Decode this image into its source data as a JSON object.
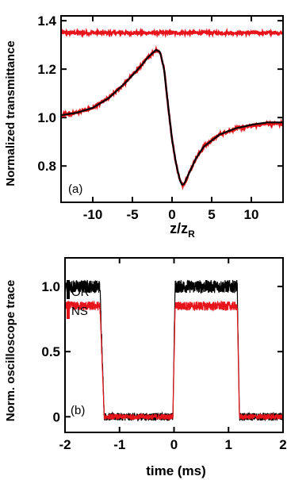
{
  "chart_data": [
    {
      "type": "line",
      "panel_label": "(a)",
      "xlabel": "z/z",
      "xlabel_sub": "R",
      "ylabel": "Normalized transmittance",
      "xlim": [
        -14,
        14
      ],
      "ylim": [
        0.65,
        1.42
      ],
      "xticks": [
        -10,
        -5,
        0,
        5,
        10
      ],
      "xtick_labels": [
        "-10",
        "-5",
        "0",
        "5",
        "10"
      ],
      "yticks": [
        0.8,
        1.0,
        1.2,
        1.4
      ],
      "ytick_labels": [
        "0.8",
        "1.0",
        "1.2",
        "1.4"
      ],
      "grid": false,
      "series": [
        {
          "color": "#e8141c",
          "style": "noisy-flat",
          "x": [
            -14,
            14
          ],
          "y": [
            1.35,
            1.35
          ]
        },
        {
          "color": "#e8141c",
          "style": "noisy-data",
          "x": [
            -14,
            -12,
            -10,
            -8,
            -6,
            -4,
            -3,
            -2,
            -1.5,
            -1,
            -0.5,
            0,
            0.5,
            1,
            1.3,
            1.6,
            2,
            3,
            4,
            6,
            8,
            10,
            12,
            14
          ],
          "y": [
            1.01,
            1.02,
            1.04,
            1.08,
            1.14,
            1.21,
            1.25,
            1.28,
            1.27,
            1.2,
            1.05,
            0.91,
            0.81,
            0.74,
            0.72,
            0.73,
            0.76,
            0.83,
            0.88,
            0.93,
            0.955,
            0.965,
            0.975,
            0.975
          ]
        },
        {
          "color": "#000000",
          "style": "fit",
          "x": [
            -14,
            -12,
            -10,
            -8,
            -6,
            -4,
            -3,
            -2,
            -1.5,
            -1,
            -0.5,
            0,
            0.5,
            1,
            1.3,
            1.6,
            2,
            3,
            4,
            6,
            8,
            10,
            12,
            14
          ],
          "y": [
            1.01,
            1.02,
            1.04,
            1.08,
            1.14,
            1.21,
            1.25,
            1.28,
            1.27,
            1.2,
            1.05,
            0.91,
            0.81,
            0.74,
            0.72,
            0.73,
            0.76,
            0.83,
            0.88,
            0.93,
            0.955,
            0.97,
            0.98,
            0.98
          ]
        }
      ]
    },
    {
      "type": "line",
      "panel_label": "(b)",
      "xlabel": "time (ms)",
      "ylabel": "Norm. oscilloscope trace",
      "xlim": [
        -2,
        2
      ],
      "ylim": [
        -0.12,
        1.22
      ],
      "xticks": [
        -2,
        -1,
        0,
        1,
        2
      ],
      "xtick_labels": [
        "-2",
        "-1",
        "0",
        "1",
        "2"
      ],
      "yticks": [
        0,
        0.5,
        1.0
      ],
      "ytick_labels": [
        "0",
        "0.5",
        "1.0"
      ],
      "grid": false,
      "legend_position": "top-left",
      "series": [
        {
          "name": "OR",
          "color": "#000000",
          "x": [
            -2,
            -1.36,
            -1.28,
            -0.02,
            0.02,
            1.16,
            1.2,
            2
          ],
          "y": [
            1.0,
            1.0,
            0.0,
            0.0,
            1.0,
            1.0,
            0.0,
            0.0
          ],
          "noise": 0.05
        },
        {
          "name": "NS",
          "color": "#e8141c",
          "x": [
            -2,
            -1.36,
            -1.28,
            -0.02,
            0.02,
            1.16,
            1.2,
            2
          ],
          "y": [
            0.85,
            0.85,
            0.0,
            0.0,
            0.85,
            0.85,
            0.0,
            0.0
          ],
          "noise": 0.035
        }
      ]
    }
  ]
}
